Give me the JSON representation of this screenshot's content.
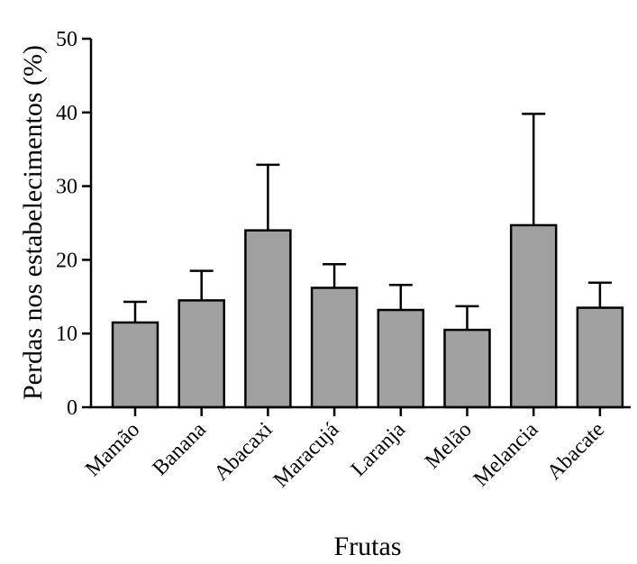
{
  "chart_data": {
    "type": "bar",
    "title": "",
    "xlabel": "Frutas",
    "ylabel": "Perdas nos estabelecimentos (%)",
    "ylim": [
      0,
      50
    ],
    "yticks": [
      0,
      10,
      20,
      30,
      40,
      50
    ],
    "categories": [
      "Mamão",
      "Banana",
      "Abacaxi",
      "Maracujá",
      "Laranja",
      "Melão",
      "Melancia",
      "Abacate"
    ],
    "values": [
      11.5,
      14.5,
      24.0,
      16.2,
      13.2,
      10.5,
      24.7,
      13.5
    ],
    "error_upper": [
      2.8,
      4.0,
      8.9,
      3.2,
      3.4,
      3.2,
      15.1,
      3.4
    ],
    "bar_color": "#a0a0a0",
    "grid": false,
    "legend": "none"
  }
}
